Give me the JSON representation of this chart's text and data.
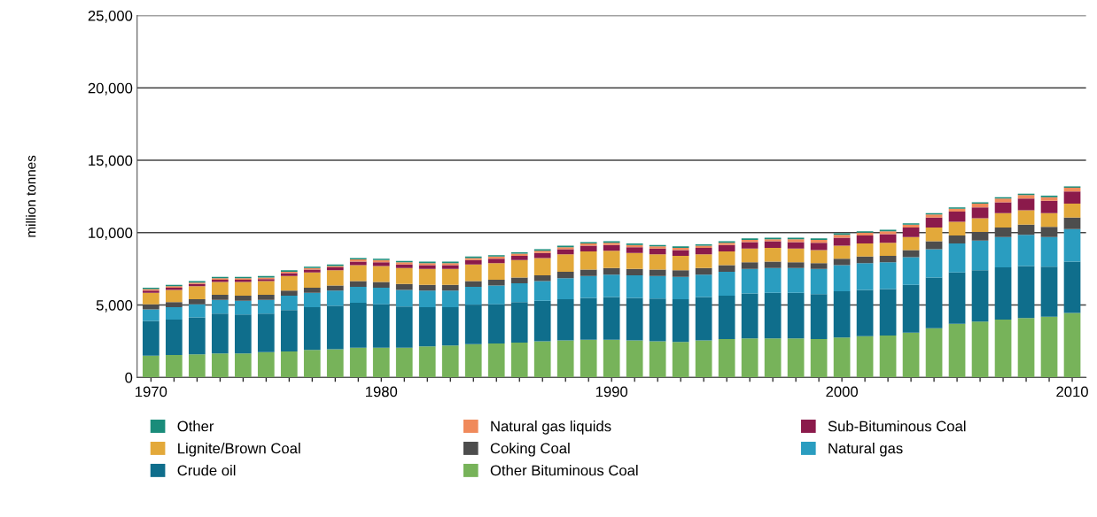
{
  "chart_data": {
    "type": "bar",
    "stacked": true,
    "ylabel": "million tonnes",
    "categories": [
      "1970",
      null,
      null,
      null,
      null,
      null,
      null,
      null,
      null,
      null,
      "1980",
      null,
      null,
      null,
      null,
      null,
      null,
      null,
      null,
      null,
      "1990",
      null,
      null,
      null,
      null,
      null,
      null,
      null,
      null,
      null,
      "2000",
      null,
      null,
      null,
      null,
      null,
      null,
      null,
      null,
      null,
      "2010"
    ],
    "ylim": [
      0,
      25000
    ],
    "yticks": [
      0,
      {
        "value": 5000,
        "label": "5,000"
      },
      {
        "value": 10000,
        "label": "10,000"
      },
      {
        "value": 15000,
        "label": "15,000"
      },
      {
        "value": 20000,
        "label": "20,000"
      },
      {
        "value": 25000,
        "label": "25,000"
      }
    ],
    "grid": "y",
    "legend": "bottom",
    "series": [
      {
        "name": "Other Bituminous Coal",
        "color": "#77b35a",
        "values": [
          1500,
          1550,
          1600,
          1650,
          1650,
          1750,
          1800,
          1900,
          1950,
          2050,
          2050,
          2050,
          2150,
          2200,
          2300,
          2350,
          2400,
          2500,
          2550,
          2600,
          2600,
          2550,
          2500,
          2450,
          2550,
          2650,
          2700,
          2700,
          2700,
          2650,
          2750,
          2850,
          2900,
          3100,
          3400,
          3700,
          3850,
          4000,
          4100,
          4200,
          4450
        ]
      },
      {
        "name": "Crude oil",
        "color": "#0f6e8c",
        "values": [
          2400,
          2450,
          2550,
          2750,
          2700,
          2650,
          2850,
          2950,
          3000,
          3100,
          3000,
          2850,
          2700,
          2650,
          2700,
          2700,
          2800,
          2800,
          2850,
          2900,
          2950,
          2950,
          2950,
          2950,
          3000,
          3000,
          3100,
          3150,
          3150,
          3100,
          3200,
          3200,
          3200,
          3300,
          3500,
          3550,
          3550,
          3600,
          3600,
          3450,
          3550
        ]
      },
      {
        "name": "Natural gas",
        "color": "#2a9dc0",
        "values": [
          800,
          850,
          900,
          950,
          950,
          950,
          1000,
          1000,
          1050,
          1100,
          1150,
          1150,
          1150,
          1150,
          1250,
          1300,
          1300,
          1350,
          1450,
          1500,
          1550,
          1550,
          1550,
          1550,
          1550,
          1650,
          1700,
          1700,
          1700,
          1750,
          1800,
          1850,
          1850,
          1900,
          1950,
          2000,
          2050,
          2100,
          2150,
          2050,
          2250
        ]
      },
      {
        "name": "Coking Coal",
        "color": "#4d4d4d",
        "values": [
          350,
          350,
          350,
          350,
          350,
          350,
          350,
          350,
          350,
          400,
          400,
          400,
          400,
          400,
          400,
          400,
          400,
          400,
          450,
          450,
          450,
          450,
          450,
          450,
          450,
          450,
          450,
          450,
          400,
          400,
          450,
          450,
          450,
          500,
          550,
          550,
          600,
          650,
          700,
          700,
          800
        ]
      },
      {
        "name": "Lignite/Brown Coal",
        "color": "#e3a93a",
        "values": [
          800,
          850,
          900,
          900,
          950,
          950,
          1000,
          1050,
          1050,
          1100,
          1100,
          1100,
          1100,
          1100,
          1150,
          1150,
          1200,
          1200,
          1200,
          1250,
          1200,
          1100,
          1050,
          1000,
          950,
          950,
          950,
          950,
          950,
          900,
          900,
          900,
          900,
          900,
          950,
          950,
          950,
          1000,
          1000,
          950,
          950
        ]
      },
      {
        "name": "Sub-Bituminous Coal",
        "color": "#8b1a4b",
        "values": [
          150,
          150,
          150,
          150,
          150,
          150,
          200,
          200,
          200,
          250,
          250,
          250,
          250,
          250,
          300,
          300,
          300,
          350,
          350,
          400,
          400,
          400,
          400,
          400,
          450,
          450,
          450,
          450,
          450,
          500,
          550,
          550,
          600,
          650,
          700,
          700,
          750,
          750,
          800,
          850,
          850
        ]
      },
      {
        "name": "Natural gas liquids",
        "color": "#f08a5b",
        "values": [
          100,
          100,
          100,
          100,
          100,
          100,
          100,
          100,
          100,
          150,
          150,
          150,
          150,
          150,
          150,
          150,
          150,
          150,
          150,
          150,
          150,
          150,
          150,
          150,
          150,
          150,
          150,
          150,
          200,
          200,
          200,
          200,
          200,
          200,
          200,
          200,
          250,
          250,
          250,
          250,
          250
        ]
      },
      {
        "name": "Other",
        "color": "#1a8c7a",
        "values": [
          100,
          100,
          100,
          100,
          100,
          100,
          100,
          100,
          100,
          100,
          100,
          100,
          100,
          100,
          100,
          100,
          100,
          100,
          100,
          100,
          100,
          100,
          100,
          100,
          100,
          100,
          100,
          100,
          100,
          100,
          100,
          100,
          100,
          100,
          100,
          100,
          100,
          100,
          100,
          100,
          100
        ]
      }
    ]
  }
}
